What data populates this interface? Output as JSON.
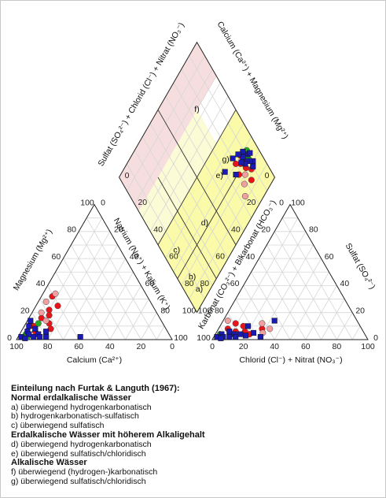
{
  "chart_data": {
    "type": "scatter",
    "subtype": "piper-diagram",
    "cation_triangle": {
      "bottom_label": "Calcium (Ca²⁺)",
      "left_label": "Magnesium (Mg²⁺)",
      "right_label": "Natrium (Na⁺) + Kalium (K⁺)",
      "ticks": [
        "0",
        "20",
        "40",
        "60",
        "80",
        "100"
      ]
    },
    "anion_triangle": {
      "bottom_label": "Chlorid (Cl⁻) + Nitrat (NO₃⁻)",
      "left_label": "Karbonat (CO₃²⁻) + Bikarbonat (HCO₃⁻)",
      "right_label": "Sulfat (SO₄²⁻)",
      "ticks": [
        "0",
        "20",
        "40",
        "60",
        "80",
        "100"
      ]
    },
    "diamond": {
      "upper_left_label": "Sulfat (SO₄²⁻) + Chlorid (Cl⁻) + Nitrat (NO₃⁻)",
      "upper_right_label": "Calcium (Ca²⁺) + Magnesium (Mg²⁺)",
      "fields": [
        {
          "id": "a",
          "label": "a)",
          "color": "#f7dede"
        },
        {
          "id": "b",
          "label": "b)",
          "color": "#f7dede"
        },
        {
          "id": "c",
          "label": "c)",
          "color": "#f7dede"
        },
        {
          "id": "d",
          "label": "d)",
          "color": "#fbfbd6"
        },
        {
          "id": "e",
          "label": "e)",
          "color": "#fbfbd6"
        },
        {
          "id": "f",
          "label": "f)",
          "color": "#fafaa8"
        },
        {
          "id": "g",
          "label": "g)",
          "color": "#fafaa8"
        }
      ]
    },
    "series": [
      {
        "marker": "circle",
        "color": "#e8141c",
        "cations": [
          [
            6,
            10
          ],
          [
            8,
            16
          ],
          [
            10,
            22
          ],
          [
            12,
            18
          ],
          [
            14,
            25
          ],
          [
            7,
            32
          ],
          [
            9,
            6
          ],
          [
            15,
            12
          ],
          [
            18,
            8
          ]
        ],
        "anions": [
          [
            4,
            3
          ],
          [
            6,
            8
          ],
          [
            9,
            12
          ],
          [
            12,
            6
          ],
          [
            15,
            10
          ],
          [
            18,
            6
          ],
          [
            22,
            4
          ],
          [
            28,
            8
          ]
        ],
        "diamond": [
          [
            12,
            82
          ],
          [
            15,
            78
          ],
          [
            17,
            73
          ],
          [
            20,
            70
          ],
          [
            14,
            70
          ],
          [
            16,
            86
          ],
          [
            11,
            74
          ],
          [
            22,
            76
          ]
        ]
      },
      {
        "marker": "circle",
        "color": "#f0a0a0",
        "cations": [
          [
            5,
            28
          ],
          [
            8,
            34
          ],
          [
            6,
            20
          ],
          [
            12,
            14
          ]
        ],
        "anions": [
          [
            30,
            5
          ],
          [
            26,
            12
          ],
          [
            33,
            8
          ],
          [
            3,
            14
          ]
        ],
        "diamond": [
          [
            26,
            88
          ],
          [
            22,
            83
          ],
          [
            18,
            80
          ]
        ]
      },
      {
        "marker": "circle",
        "color": "#22aa22",
        "cations": [
          [
            4,
            4
          ],
          [
            8,
            12
          ],
          [
            6,
            2
          ]
        ],
        "anions": [
          [
            3,
            4
          ]
        ],
        "diamond": [
          [
            10,
            76
          ],
          [
            8,
            72
          ]
        ]
      },
      {
        "marker": "square",
        "color": "#1a1ab4",
        "cations": [
          [
            2,
            2
          ],
          [
            4,
            6
          ],
          [
            6,
            4
          ],
          [
            8,
            8
          ],
          [
            10,
            2
          ],
          [
            3,
            10
          ],
          [
            12,
            4
          ],
          [
            14,
            2
          ],
          [
            16,
            6
          ],
          [
            18,
            2
          ],
          [
            5,
            1
          ],
          [
            40,
            2
          ],
          [
            2,
            14
          ]
        ],
        "anions": [
          [
            2,
            2
          ],
          [
            4,
            4
          ],
          [
            6,
            2
          ],
          [
            8,
            6
          ],
          [
            10,
            2
          ],
          [
            12,
            4
          ],
          [
            14,
            2
          ],
          [
            16,
            4
          ],
          [
            20,
            3
          ],
          [
            24,
            5
          ],
          [
            30,
            2
          ],
          [
            33,
            14
          ],
          [
            5,
            1
          ],
          [
            18,
            10
          ]
        ],
        "diamond": [
          [
            8,
            80
          ],
          [
            10,
            78
          ],
          [
            12,
            76
          ],
          [
            9,
            74
          ],
          [
            11,
            70
          ],
          [
            7,
            75
          ],
          [
            13,
            72
          ],
          [
            14,
            76
          ],
          [
            10,
            82
          ],
          [
            16,
            73
          ],
          [
            15,
            68
          ],
          [
            20,
            66
          ],
          [
            24,
            74
          ],
          [
            30,
            66
          ]
        ]
      }
    ]
  },
  "legend": {
    "title": "Einteilung nach Furtak & Languth (1967):",
    "group1": "Normal erdalkalische Wässer",
    "a": "a) überwiegend hydrogenkarbonatisch",
    "b": "b) hydrogenkarbonatisch-sulfatisch",
    "c": "c) überwiegend sulfatisch",
    "group2": "Erdalkalische Wässer mit höherem Alkaligehalt",
    "d": "d) überwiegend hydrogenkarbonatisch",
    "e": "e) überwiegend sulfatisch/chloridisch",
    "group3": "Alkalische Wässer",
    "f": "f)  überwiegend (hydrogen-)karbonatisch",
    "g": "g)  überwiegend sulfatisch/chloridisch"
  }
}
